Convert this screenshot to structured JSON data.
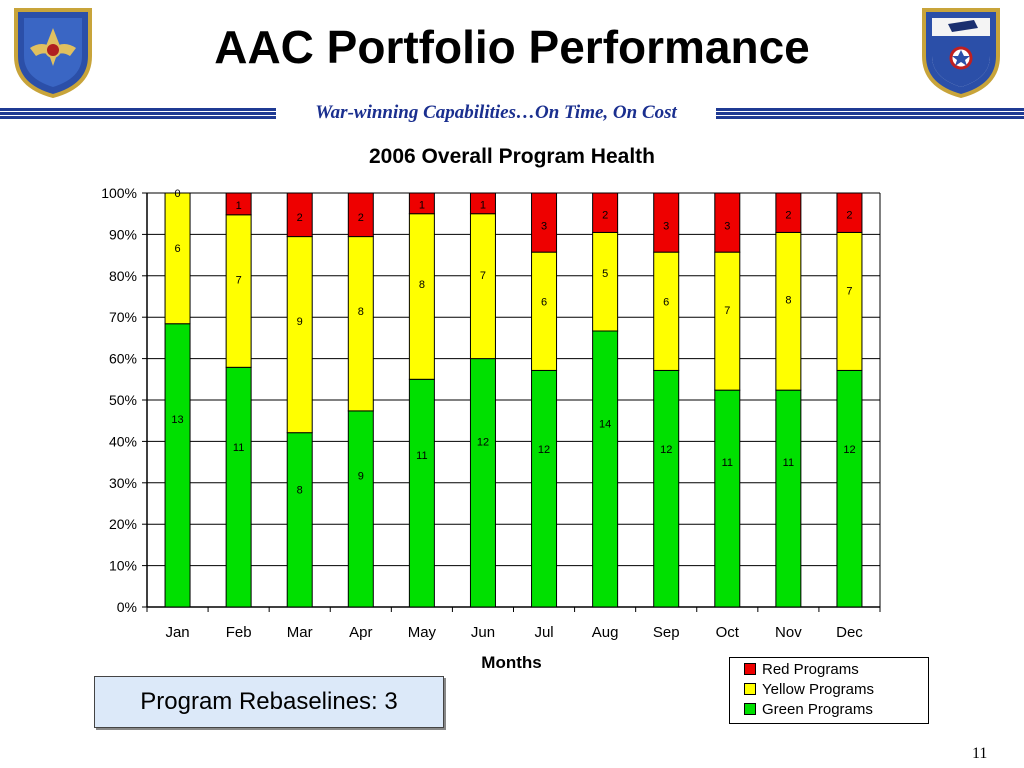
{
  "slide": {
    "title": "AAC Portfolio Performance",
    "subtitle": "War-winning Capabilities…On Time, On Cost",
    "page_number": "11",
    "rebaselines_text": "Program Rebaselines: 3",
    "band_color": "#1f3a93"
  },
  "logos": {
    "left": "air-force-materiel-command-shield-icon",
    "right": "air-armament-center-shield-icon"
  },
  "chart_data": {
    "type": "bar",
    "stacked": "percent",
    "title": "2006 Overall Program Health",
    "xlabel": "Months",
    "ylabel": "",
    "ylim": [
      0,
      100
    ],
    "yticks": [
      "0%",
      "10%",
      "20%",
      "30%",
      "40%",
      "50%",
      "60%",
      "70%",
      "80%",
      "90%",
      "100%"
    ],
    "categories": [
      "Jan",
      "Feb",
      "Mar",
      "Apr",
      "May",
      "Jun",
      "Jul",
      "Aug",
      "Sep",
      "Oct",
      "Nov",
      "Dec"
    ],
    "series": [
      {
        "name": "Green Programs",
        "color": "#00e000",
        "values": [
          13,
          11,
          8,
          9,
          11,
          12,
          12,
          14,
          12,
          11,
          11,
          12
        ]
      },
      {
        "name": "Yellow Programs",
        "color": "#ffff00",
        "values": [
          6,
          7,
          9,
          8,
          8,
          7,
          6,
          5,
          6,
          7,
          8,
          7
        ]
      },
      {
        "name": "Red Programs",
        "color": "#ee0000",
        "values": [
          0,
          1,
          2,
          2,
          1,
          1,
          3,
          2,
          3,
          3,
          2,
          2
        ]
      }
    ],
    "legend": [
      "Red Programs",
      "Yellow Programs",
      "Green Programs"
    ],
    "legend_position": "bottom-right",
    "grid": true
  }
}
